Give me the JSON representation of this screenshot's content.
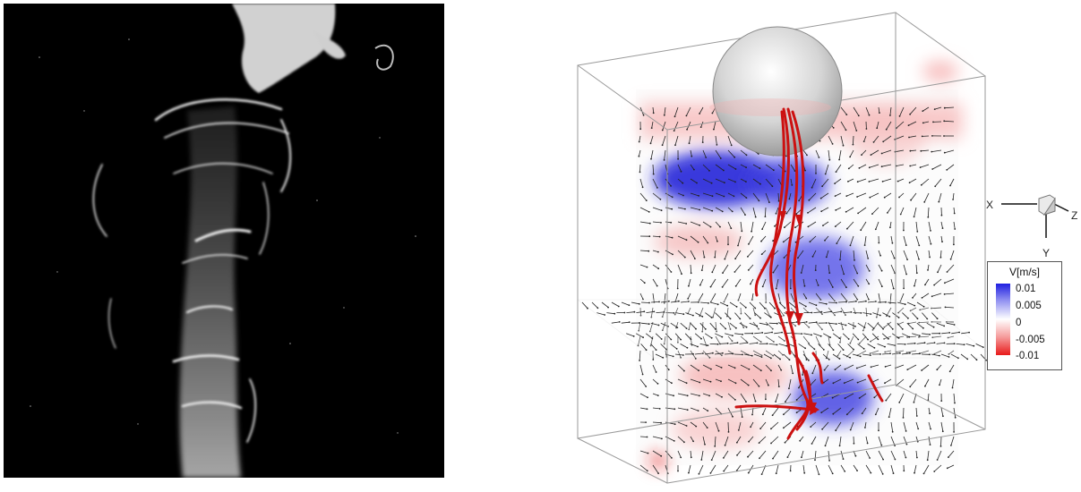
{
  "legend": {
    "title": "V[m/s]",
    "ticks": [
      "0.01",
      "0.005",
      "0",
      "-0.005",
      "-0.01"
    ],
    "colors": {
      "max": "#1f1fe0",
      "mid": "#ffffff",
      "min": "#e81a1a"
    }
  },
  "axes_triad": {
    "x": "X",
    "y": "Y",
    "z": "Z"
  },
  "colors": {
    "streamline": "#cc1111",
    "positive_velocity": "#1f1fe0",
    "negative_velocity": "#e81a1a",
    "vector_arrows": "#222222",
    "sphere": "#d8d8d8"
  }
}
